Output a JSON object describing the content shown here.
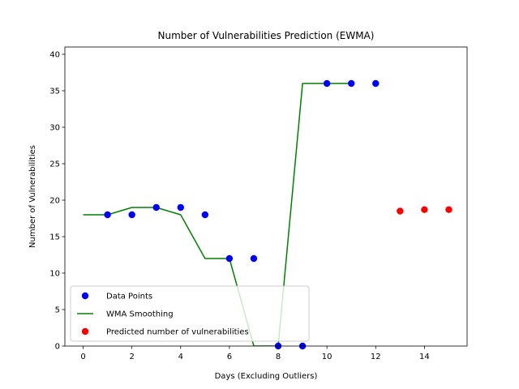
{
  "chart_data": {
    "type": "scatter",
    "title": "Number of Vulnerabilities Prediction (EWMA)",
    "xlabel": "Days (Excluding Outliers)",
    "ylabel": "Number of Vulnerabilities",
    "xlim": [
      -0.75,
      15.75
    ],
    "ylim": [
      0,
      41
    ],
    "xticks": [
      0,
      2,
      4,
      6,
      8,
      10,
      12,
      14
    ],
    "yticks": [
      0,
      5,
      10,
      15,
      20,
      25,
      30,
      35,
      40
    ],
    "grid": false,
    "legend": "bottom-left",
    "series": [
      {
        "name": "Data Points",
        "kind": "scatter",
        "color": "#0000ff",
        "x": [
          1,
          2,
          3,
          4,
          5,
          6,
          7,
          8,
          9,
          10,
          11,
          12
        ],
        "y": [
          18,
          18,
          19,
          19,
          18,
          12,
          12,
          0,
          0,
          36,
          36,
          36
        ]
      },
      {
        "name": "WMA Smoothing",
        "kind": "line",
        "color": "#008000",
        "x": [
          0,
          1,
          2,
          3,
          4,
          5,
          6,
          7,
          8,
          9,
          10,
          11
        ],
        "y": [
          18,
          18,
          19,
          19,
          18,
          12,
          12,
          0,
          0,
          36,
          36,
          36
        ]
      },
      {
        "name": "Predicted number of vulnerabilities",
        "kind": "scatter",
        "color": "#ff0000",
        "x": [
          13,
          14,
          15
        ],
        "y": [
          18.5,
          18.7,
          18.7
        ]
      }
    ]
  }
}
